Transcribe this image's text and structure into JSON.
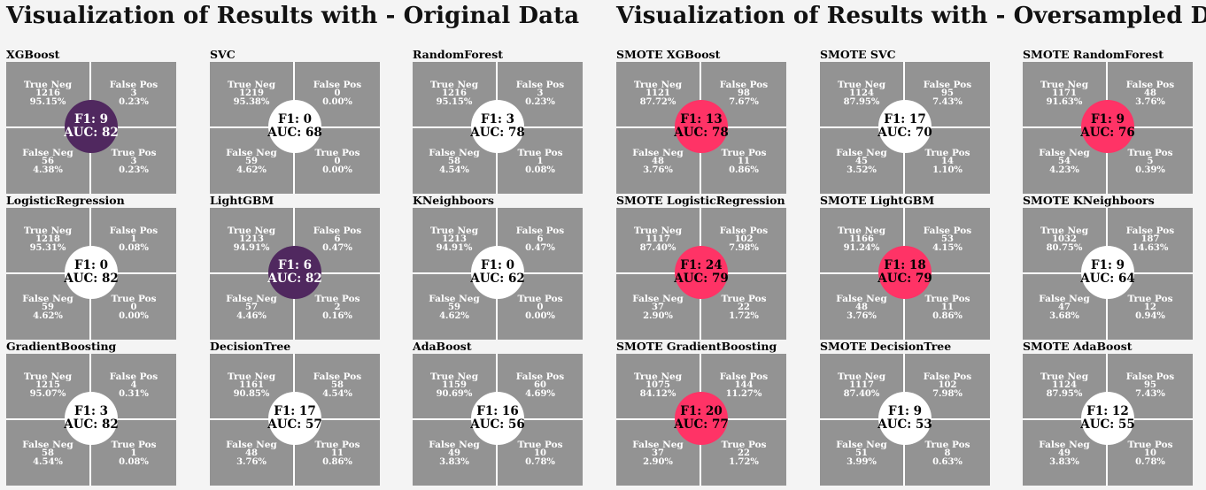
{
  "colors": {
    "background": "#f4f4f4",
    "cell_gray": "#939393",
    "circle_white": "#ffffff",
    "circle_purple": "#50285f",
    "circle_pink": "#ff3366"
  },
  "titles": {
    "original": "Visualization of Results with - Original Data",
    "oversampled": "Visualization of Results with - Oversampled Data"
  },
  "labels": {
    "tn": "True Neg",
    "fp": "False Pos",
    "fn": "False Neg",
    "tp": "True Pos",
    "f1_prefix": "F1: ",
    "auc_prefix": "AUC: "
  },
  "chart_data": [
    {
      "type": "heatmap",
      "title": "Visualization of Results with - Original Data",
      "panels": [
        {
          "name": "XGBoost",
          "tn": 1216,
          "tn_pct": "95.15%",
          "fp": 3,
          "fp_pct": "0.23%",
          "fn": 56,
          "fn_pct": "4.38%",
          "tp": 3,
          "tp_pct": "0.23%",
          "f1": 9,
          "auc": 82,
          "circle_color": "#50285f"
        },
        {
          "name": "SVC",
          "tn": 1219,
          "tn_pct": "95.38%",
          "fp": 0,
          "fp_pct": "0.00%",
          "fn": 59,
          "fn_pct": "4.62%",
          "tp": 0,
          "tp_pct": "0.00%",
          "f1": 0,
          "auc": 68,
          "circle_color": "#ffffff"
        },
        {
          "name": "RandomForest",
          "tn": 1216,
          "tn_pct": "95.15%",
          "fp": 3,
          "fp_pct": "0.23%",
          "fn": 58,
          "fn_pct": "4.54%",
          "tp": 1,
          "tp_pct": "0.08%",
          "f1": 3,
          "auc": 78,
          "circle_color": "#ffffff"
        },
        {
          "name": "LogisticRegression",
          "tn": 1218,
          "tn_pct": "95.31%",
          "fp": 1,
          "fp_pct": "0.08%",
          "fn": 59,
          "fn_pct": "4.62%",
          "tp": 0,
          "tp_pct": "0.00%",
          "f1": 0,
          "auc": 82,
          "circle_color": "#ffffff"
        },
        {
          "name": "LightGBM",
          "tn": 1213,
          "tn_pct": "94.91%",
          "fp": 6,
          "fp_pct": "0.47%",
          "fn": 57,
          "fn_pct": "4.46%",
          "tp": 2,
          "tp_pct": "0.16%",
          "f1": 6,
          "auc": 82,
          "circle_color": "#50285f"
        },
        {
          "name": "KNeighboors",
          "tn": 1213,
          "tn_pct": "94.91%",
          "fp": 6,
          "fp_pct": "0.47%",
          "fn": 59,
          "fn_pct": "4.62%",
          "tp": 0,
          "tp_pct": "0.00%",
          "f1": 0,
          "auc": 62,
          "circle_color": "#ffffff"
        },
        {
          "name": "GradientBoosting",
          "tn": 1215,
          "tn_pct": "95.07%",
          "fp": 4,
          "fp_pct": "0.31%",
          "fn": 58,
          "fn_pct": "4.54%",
          "tp": 1,
          "tp_pct": "0.08%",
          "f1": 3,
          "auc": 82,
          "circle_color": "#ffffff"
        },
        {
          "name": "DecisionTree",
          "tn": 1161,
          "tn_pct": "90.85%",
          "fp": 58,
          "fp_pct": "4.54%",
          "fn": 48,
          "fn_pct": "3.76%",
          "tp": 11,
          "tp_pct": "0.86%",
          "f1": 17,
          "auc": 57,
          "circle_color": "#ffffff"
        },
        {
          "name": "AdaBoost",
          "tn": 1159,
          "tn_pct": "90.69%",
          "fp": 60,
          "fp_pct": "4.69%",
          "fn": 49,
          "fn_pct": "3.83%",
          "tp": 10,
          "tp_pct": "0.78%",
          "f1": 16,
          "auc": 56,
          "circle_color": "#ffffff"
        }
      ]
    },
    {
      "type": "heatmap",
      "title": "Visualization of Results with - Oversampled Data",
      "panels": [
        {
          "name": "SMOTE XGBoost",
          "tn": 1121,
          "tn_pct": "87.72%",
          "fp": 98,
          "fp_pct": "7.67%",
          "fn": 48,
          "fn_pct": "3.76%",
          "tp": 11,
          "tp_pct": "0.86%",
          "f1": 13,
          "auc": 78,
          "circle_color": "#ff3366"
        },
        {
          "name": "SMOTE SVC",
          "tn": 1124,
          "tn_pct": "87.95%",
          "fp": 95,
          "fp_pct": "7.43%",
          "fn": 45,
          "fn_pct": "3.52%",
          "tp": 14,
          "tp_pct": "1.10%",
          "f1": 17,
          "auc": 70,
          "circle_color": "#ffffff"
        },
        {
          "name": "SMOTE RandomForest",
          "tn": 1171,
          "tn_pct": "91.63%",
          "fp": 48,
          "fp_pct": "3.76%",
          "fn": 54,
          "fn_pct": "4.23%",
          "tp": 5,
          "tp_pct": "0.39%",
          "f1": 9,
          "auc": 76,
          "circle_color": "#ff3366"
        },
        {
          "name": "SMOTE LogisticRegression",
          "tn": 1117,
          "tn_pct": "87.40%",
          "fp": 102,
          "fp_pct": "7.98%",
          "fn": 37,
          "fn_pct": "2.90%",
          "tp": 22,
          "tp_pct": "1.72%",
          "f1": 24,
          "auc": 79,
          "circle_color": "#ff3366"
        },
        {
          "name": "SMOTE LightGBM",
          "tn": 1166,
          "tn_pct": "91.24%",
          "fp": 53,
          "fp_pct": "4.15%",
          "fn": 48,
          "fn_pct": "3.76%",
          "tp": 11,
          "tp_pct": "0.86%",
          "f1": 18,
          "auc": 79,
          "circle_color": "#ff3366"
        },
        {
          "name": "SMOTE KNeighboors",
          "tn": 1032,
          "tn_pct": "80.75%",
          "fp": 187,
          "fp_pct": "14.63%",
          "fn": 47,
          "fn_pct": "3.68%",
          "tp": 12,
          "tp_pct": "0.94%",
          "f1": 9,
          "auc": 64,
          "circle_color": "#ffffff"
        },
        {
          "name": "SMOTE GradientBoosting",
          "tn": 1075,
          "tn_pct": "84.12%",
          "fp": 144,
          "fp_pct": "11.27%",
          "fn": 37,
          "fn_pct": "2.90%",
          "tp": 22,
          "tp_pct": "1.72%",
          "f1": 20,
          "auc": 77,
          "circle_color": "#ff3366"
        },
        {
          "name": "SMOTE DecisionTree",
          "tn": 1117,
          "tn_pct": "87.40%",
          "fp": 102,
          "fp_pct": "7.98%",
          "fn": 51,
          "fn_pct": "3.99%",
          "tp": 8,
          "tp_pct": "0.63%",
          "f1": 9,
          "auc": 53,
          "circle_color": "#ffffff"
        },
        {
          "name": "SMOTE AdaBoost",
          "tn": 1124,
          "tn_pct": "87.95%",
          "fp": 95,
          "fp_pct": "7.43%",
          "fn": 49,
          "fn_pct": "3.83%",
          "tp": 10,
          "tp_pct": "0.78%",
          "f1": 12,
          "auc": 55,
          "circle_color": "#ffffff"
        }
      ]
    }
  ]
}
